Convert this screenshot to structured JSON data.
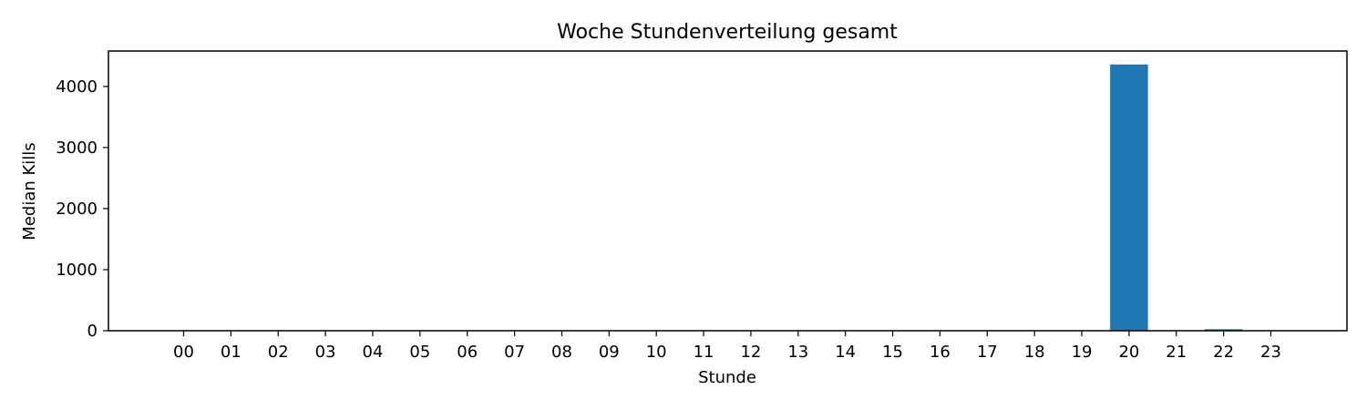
{
  "chart_data": {
    "type": "bar",
    "title": "Woche Stundenverteilung gesamt",
    "xlabel": "Stunde",
    "ylabel": "Median Kills",
    "categories": [
      "00",
      "01",
      "02",
      "03",
      "04",
      "05",
      "06",
      "07",
      "08",
      "09",
      "10",
      "11",
      "12",
      "13",
      "14",
      "15",
      "16",
      "17",
      "18",
      "19",
      "20",
      "21",
      "22",
      "23"
    ],
    "values": [
      0,
      0,
      0,
      0,
      0,
      0,
      0,
      0,
      0,
      0,
      0,
      0,
      0,
      0,
      0,
      0,
      0,
      0,
      0,
      0,
      4360,
      0,
      25,
      5
    ],
    "ylim": [
      0,
      4580
    ],
    "yticks": [
      0,
      1000,
      2000,
      3000,
      4000
    ],
    "bar_color": "#1f77b4",
    "grid": false,
    "legend": false
  }
}
